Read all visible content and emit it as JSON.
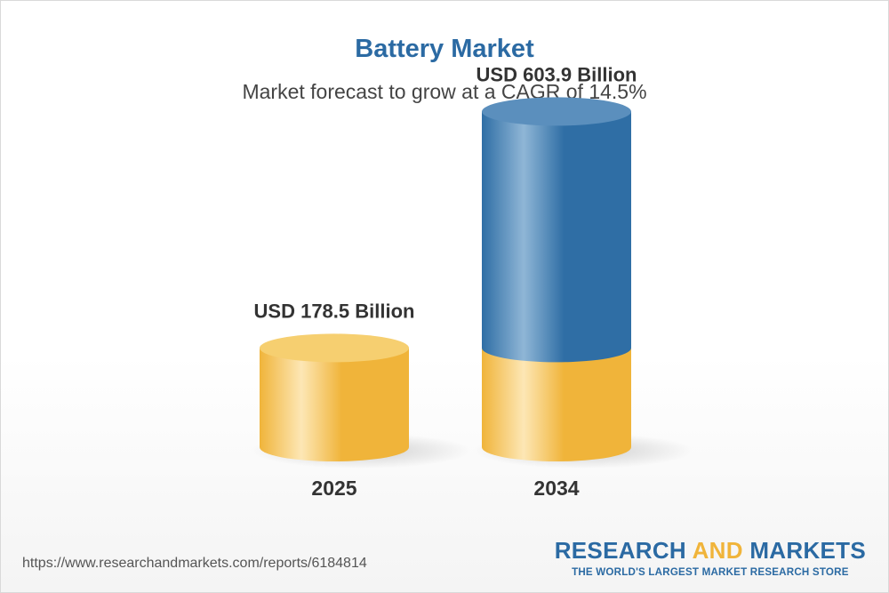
{
  "chart_data": {
    "type": "bar",
    "title": "Battery Market",
    "subtitle": "Market forecast to grow at a CAGR of 14.5%",
    "categories": [
      "2025",
      "2034"
    ],
    "values": [
      178.5,
      603.9
    ],
    "data_labels": [
      "USD 178.5 Billion",
      "USD 603.9 Billion"
    ],
    "unit": "USD Billion",
    "grid": false,
    "legend": "none",
    "colors": {
      "base": "#f0b43a",
      "base_light": "#fde7b5",
      "growth": "#2f6ea5",
      "growth_light": "#8fb6d6"
    }
  },
  "footer": {
    "url": "https://www.researchandmarkets.com/reports/6184814",
    "brand_part1": "RESEARCH ",
    "brand_part2": "AND",
    "brand_part3": " MARKETS",
    "tagline": "THE WORLD'S LARGEST MARKET RESEARCH STORE"
  }
}
